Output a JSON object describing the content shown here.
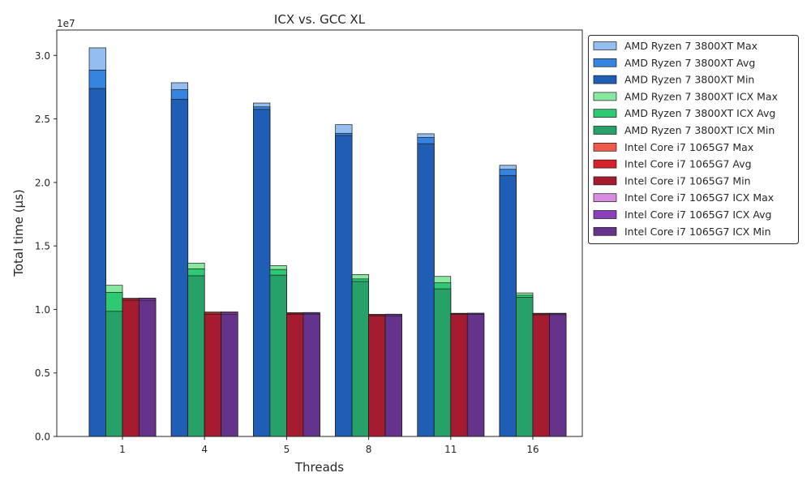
{
  "chart_data": {
    "type": "bar",
    "title": "ICX vs. GCC XL",
    "xlabel": "Threads",
    "ylabel": "Total time (µs)",
    "y_offset_label": "1e7",
    "y_tick_labels": [
      "0.0",
      "0.5",
      "1.0",
      "1.5",
      "2.0",
      "2.5",
      "3.0"
    ],
    "ylim": [
      0,
      32000000.0
    ],
    "grid": false,
    "legend_position": "outside-right",
    "categories": [
      "1",
      "4",
      "5",
      "8",
      "11",
      "16"
    ],
    "groups": [
      {
        "name": "AMD Ryzen 7 3800XT",
        "series": [
          {
            "name": "AMD Ryzen 7 3800XT Max",
            "color": "#94bdf0",
            "values": [
              30600000,
              27850000,
              26250000,
              24550000,
              23830000,
              21350000
            ]
          },
          {
            "name": "AMD Ryzen 7 3800XT Avg",
            "color": "#3585e0",
            "values": [
              28850000,
              27300000,
              25950000,
              23870000,
              23550000,
              21030000
            ]
          },
          {
            "name": "AMD Ryzen 7 3800XT Min",
            "color": "#1f5eb4",
            "values": [
              27400000,
              26550000,
              25750000,
              23700000,
              23050000,
              20550000
            ]
          }
        ]
      },
      {
        "name": "AMD Ryzen 7 3800XT ICX",
        "series": [
          {
            "name": "AMD Ryzen 7 3800XT ICX Max",
            "color": "#88e89f",
            "values": [
              11900000,
              13650000,
              13450000,
              12750000,
              12600000,
              11300000
            ]
          },
          {
            "name": "AMD Ryzen 7 3800XT ICX Avg",
            "color": "#2ec973",
            "values": [
              11350000,
              13200000,
              13150000,
              12400000,
              12100000,
              11120000
            ]
          },
          {
            "name": "AMD Ryzen 7 3800XT ICX Min",
            "color": "#26a168",
            "values": [
              9850000,
              12650000,
              12700000,
              12200000,
              11620000,
              10950000
            ]
          }
        ]
      },
      {
        "name": "Intel Core i7 1065G7",
        "series": [
          {
            "name": "Intel Core i7 1065G7 Max",
            "color": "#f05a4a",
            "values": [
              10880000,
              9800000,
              9750000,
              9620000,
              9700000,
              9700000
            ]
          },
          {
            "name": "Intel Core i7 1065G7 Avg",
            "color": "#d6232a",
            "values": [
              10830000,
              9720000,
              9700000,
              9570000,
              9670000,
              9650000
            ]
          },
          {
            "name": "Intel Core i7 1065G7 Min",
            "color": "#a51c30",
            "values": [
              10720000,
              9620000,
              9620000,
              9480000,
              9610000,
              9580000
            ]
          }
        ]
      },
      {
        "name": "Intel Core i7 1065G7 ICX",
        "series": [
          {
            "name": "Intel Core i7 1065G7 ICX Max",
            "color": "#d88ee0",
            "values": [
              10900000,
              9820000,
              9760000,
              9630000,
              9710000,
              9700000
            ]
          },
          {
            "name": "Intel Core i7 1065G7 ICX Avg",
            "color": "#8b3fbb",
            "values": [
              10840000,
              9740000,
              9710000,
              9580000,
              9680000,
              9660000
            ]
          },
          {
            "name": "Intel Core i7 1065G7 ICX Min",
            "color": "#65338a",
            "values": [
              10700000,
              9630000,
              9630000,
              9480000,
              9610000,
              9590000
            ]
          }
        ]
      }
    ]
  }
}
